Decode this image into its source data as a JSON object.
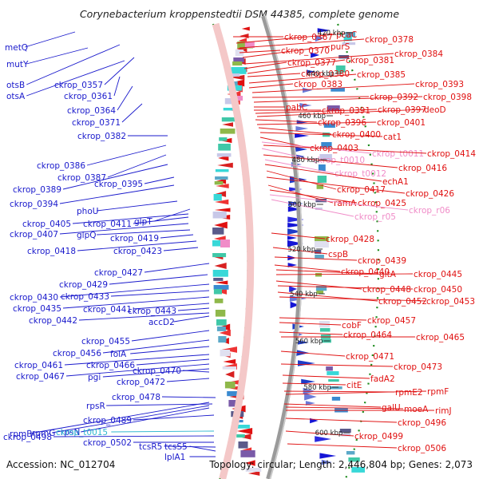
{
  "title": "Corynebacterium kroppenstedtii DSM 44385, complete genome",
  "footer": {
    "accession": "Accession: NC_012704",
    "topology": "Topology: circular; Length: 2,446,804 bp; Genes: 2,073"
  },
  "colors": {
    "left_genes": "#1a1acc",
    "right_genes": "#e01010",
    "trna": "#2fb8d0",
    "rrna_pink": "#f08cc8",
    "backbone": "#9a9a9a",
    "dotted_ring": "#1a8a1a"
  },
  "ruler": [
    "420 kbp",
    "440 kbp",
    "460 kbp",
    "480 kbp",
    "500 kbp",
    "520 kbp",
    "540 kbp",
    "560 kbp",
    "580 kbp",
    "600 kbp"
  ],
  "left_labels": [
    "metQ",
    "mutY",
    "otsB",
    "ckrop_0357",
    "otsA",
    "ckrop_0361",
    "ckrop_0364",
    "ckrop_0371",
    "ckrop_0382",
    "ckrop_0386",
    "ckrop_0387",
    "ckrop_0389",
    "ckrop_0395",
    "ckrop_0394",
    "phoU",
    "ckrop_0405",
    "ckrop_0411",
    "glpT",
    "ckrop_0407",
    "glpQ",
    "ckrop_0419",
    "ckrop_0418",
    "ckrop_0423",
    "ckrop_0427",
    "ckrop_0429",
    "ckrop_0430",
    "ckrop_0433",
    "ckrop_0435",
    "ckrop_0441",
    "ckrop_0443",
    "ckrop_0442",
    "accD2",
    "ckrop_0455",
    "ckrop_0456",
    "folA",
    "ckrop_0461",
    "ckrop_0466",
    "ckrop_0467",
    "pgi",
    "ckrop_0470",
    "ckrop_0472",
    "ckrop_0478",
    "rpmB",
    "rpmG",
    "rpsN",
    "rpsR",
    "ckrop_0489",
    "ckrop_t0015",
    "ckrop_0498",
    "ckrop_0502",
    "tcsR5",
    "tcsS5",
    "lplA1"
  ],
  "right_labels": [
    "ckrop_0367",
    "pcaC",
    "ckrop_0378",
    "ckrop_0370",
    "purS",
    "ckrop_0384",
    "ckrop_0377",
    "ckrop_0381",
    "ckrop_0380",
    "ckrop_0385",
    "ckrop_0383",
    "ckrop_0393",
    "ckrop_0392",
    "ckrop_0398",
    "pabC",
    "ckrop_0391",
    "ckrop_0397",
    "deoD",
    "ckrop_0396",
    "ckrop_0401",
    "ckrop_0400",
    "cat1",
    "ckrop_0403",
    "ckrop_t0011",
    "ckrop_0414",
    "ckrop_t0010",
    "ckrop_0416",
    "ckrop_t0012",
    "echA1",
    "ckrop_0417",
    "ckrop_0426",
    "ramA",
    "ckrop_0425",
    "ckrop_r06",
    "ckrop_r05",
    "ckrop_0428",
    "cspB",
    "ckrop_0439",
    "ckrop_0440",
    "gltA",
    "ckrop_0445",
    "ckrop_0448",
    "ckrop_0450",
    "ckrop_0452",
    "ckrop_0453",
    "cobF",
    "ckrop_0457",
    "ckrop_0464",
    "ckrop_0465",
    "ckrop_0471",
    "ckrop_0473",
    "fadA2",
    "citE",
    "rpmE2",
    "rpmF",
    "galU",
    "moeA",
    "rimJ",
    "ckrop_0496",
    "ckrop_0499",
    "ckrop_0506"
  ]
}
